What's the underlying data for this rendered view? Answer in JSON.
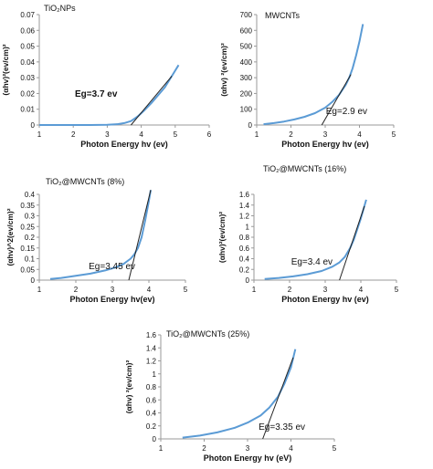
{
  "chart_data": [
    {
      "type": "line",
      "panel_label": "TiO₂NPs",
      "annotation": "Eg=3.7 ev",
      "xlabel": "Photon Energy hv (ev)",
      "ylabel": "(αhv)²(ev/cm)²",
      "xlim": [
        1,
        6
      ],
      "ylim": [
        0,
        0.07
      ],
      "xticks": [
        "1",
        "2",
        "3",
        "4",
        "5",
        "6"
      ],
      "yticks": [
        "0",
        "0.01",
        "0.02",
        "0.03",
        "0.04",
        "0.05",
        "0.06",
        "0.07"
      ],
      "grid": false,
      "series": [
        {
          "x": [
            1.0,
            1.5,
            2.0,
            2.5,
            3.0,
            3.3,
            3.5,
            3.7,
            3.9,
            4.1,
            4.3,
            4.5,
            4.7,
            4.9,
            5.1
          ],
          "y": [
            0.0,
            0.0,
            0.0,
            0.0,
            0.0002,
            0.0005,
            0.0012,
            0.0025,
            0.0055,
            0.0095,
            0.014,
            0.019,
            0.024,
            0.031,
            0.038
          ]
        }
      ],
      "tangent": {
        "x": [
          3.7,
          4.9
        ],
        "y": [
          0.0,
          0.031
        ]
      },
      "color": "#5b9bd5",
      "tangent_color": "#222222"
    },
    {
      "type": "line",
      "panel_label": "MWCNTs",
      "annotation": "Eg=2.9 ev",
      "xlabel": "Photon Energy hv (ev)",
      "ylabel": "(αhv) ²(ev/cm)²",
      "xlim": [
        1,
        5
      ],
      "ylim": [
        0,
        700
      ],
      "xticks": [
        "1",
        "2",
        "3",
        "4",
        "5"
      ],
      "yticks": [
        "0",
        "100",
        "200",
        "300",
        "400",
        "500",
        "600",
        "700"
      ],
      "grid": false,
      "series": [
        {
          "x": [
            1.2,
            1.5,
            1.8,
            2.1,
            2.4,
            2.7,
            3.0,
            3.2,
            3.4,
            3.6,
            3.7,
            3.8,
            3.9,
            4.0,
            4.1
          ],
          "y": [
            5,
            12,
            22,
            35,
            52,
            75,
            110,
            145,
            190,
            255,
            300,
            360,
            440,
            530,
            640
          ]
        }
      ],
      "tangent": {
        "x": [
          2.9,
          3.75
        ],
        "y": [
          0,
          320
        ]
      },
      "color": "#5b9bd5",
      "tangent_color": "#222222"
    },
    {
      "type": "line",
      "panel_label": "TiO₂@MWCNTs (8%)",
      "annotation": "Eg=3.45 ev",
      "xlabel": "Photon Energy hv(ev)",
      "ylabel": "(αhv)^2(ev/cm)²",
      "xlim": [
        1,
        5
      ],
      "ylim": [
        0,
        0.4
      ],
      "xticks": [
        "1",
        "2",
        "3",
        "4",
        "5"
      ],
      "yticks": [
        "0",
        "0.05",
        "0.1",
        "0.15",
        "0.2",
        "0.25",
        "0.3",
        "0.35",
        "0.4"
      ],
      "grid": false,
      "series": [
        {
          "x": [
            1.3,
            1.6,
            2.0,
            2.4,
            2.8,
            3.1,
            3.3,
            3.5,
            3.6,
            3.7,
            3.8,
            3.9,
            4.0,
            4.05
          ],
          "y": [
            0.005,
            0.01,
            0.02,
            0.03,
            0.045,
            0.06,
            0.075,
            0.1,
            0.12,
            0.15,
            0.2,
            0.28,
            0.37,
            0.42
          ]
        }
      ],
      "tangent": {
        "x": [
          3.45,
          4.05
        ],
        "y": [
          0.0,
          0.42
        ]
      },
      "color": "#5b9bd5",
      "tangent_color": "#222222"
    },
    {
      "type": "line",
      "panel_label": "TiO₂@MWCNTs (16%)",
      "annotation": "Eg=3.4 ev",
      "xlabel": "Photon Energy hv (ev)",
      "ylabel": "(αhv)²(ev/cm)²",
      "xlim": [
        1,
        5
      ],
      "ylim": [
        0,
        1.6
      ],
      "xticks": [
        "1",
        "2",
        "3",
        "4",
        "5"
      ],
      "yticks": [
        "0",
        "0.2",
        "0.4",
        "0.6",
        "0.8",
        "1",
        "1.2",
        "1.4",
        "1.6"
      ],
      "grid": false,
      "series": [
        {
          "x": [
            1.3,
            1.7,
            2.1,
            2.5,
            2.9,
            3.2,
            3.4,
            3.55,
            3.7,
            3.8,
            3.9,
            4.0,
            4.1,
            4.15
          ],
          "y": [
            0.02,
            0.04,
            0.07,
            0.11,
            0.17,
            0.25,
            0.33,
            0.43,
            0.6,
            0.75,
            0.95,
            1.15,
            1.38,
            1.5
          ]
        }
      ],
      "tangent": {
        "x": [
          3.4,
          4.1
        ],
        "y": [
          0.0,
          1.38
        ]
      },
      "color": "#5b9bd5",
      "tangent_color": "#222222"
    },
    {
      "type": "line",
      "panel_label": "TiO₂@MWCNTs (25%)",
      "annotation": "Eg=3.35 ev",
      "xlabel": "Photon Energy hv (eV)",
      "ylabel": "(αhv) ²(ev/cm)²",
      "xlim": [
        1,
        5
      ],
      "ylim": [
        0,
        1.6
      ],
      "xticks": [
        "1",
        "2",
        "3",
        "4",
        "5"
      ],
      "yticks": [
        "0",
        "0.2",
        "0.4",
        "0.6",
        "0.8",
        "1",
        "1.2",
        "1.4",
        "1.6"
      ],
      "grid": false,
      "series": [
        {
          "x": [
            1.5,
            1.9,
            2.3,
            2.7,
            3.0,
            3.3,
            3.5,
            3.7,
            3.85,
            4.0,
            4.1
          ],
          "y": [
            0.02,
            0.05,
            0.1,
            0.17,
            0.25,
            0.36,
            0.48,
            0.65,
            0.85,
            1.1,
            1.38
          ]
        }
      ],
      "tangent": {
        "x": [
          3.35,
          4.05
        ],
        "y": [
          0.0,
          1.25
        ]
      },
      "color": "#5b9bd5",
      "tangent_color": "#222222"
    }
  ]
}
